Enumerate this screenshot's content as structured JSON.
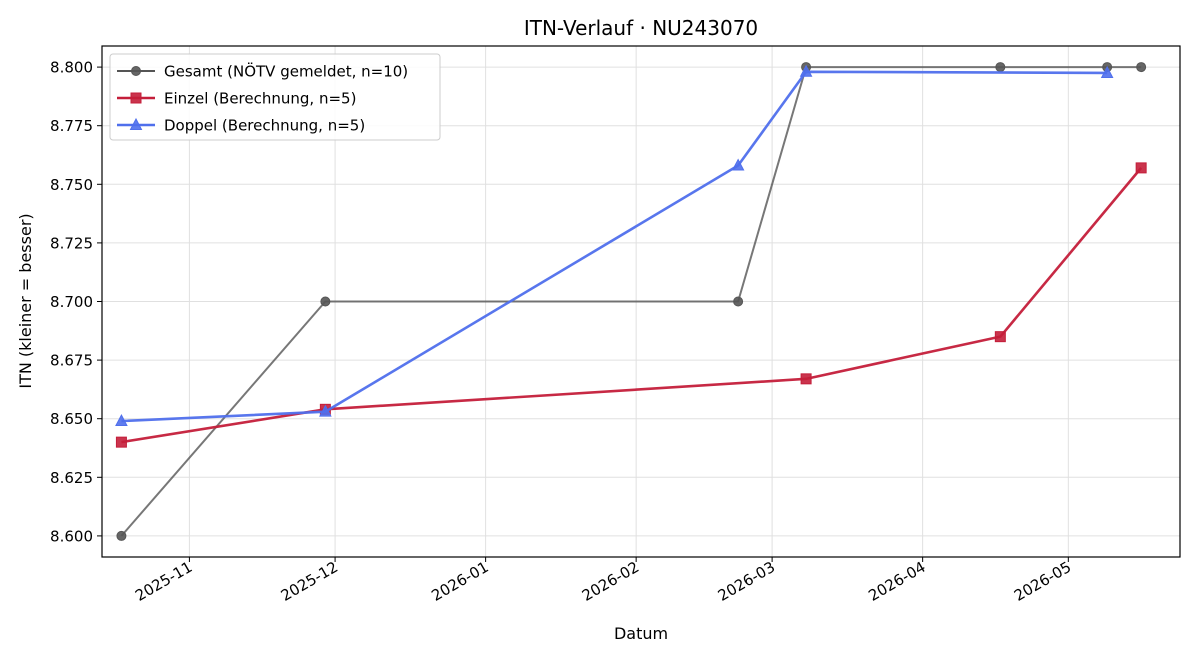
{
  "chart_data": {
    "type": "line",
    "title": "ITN-Verlauf · NU243070",
    "xlabel": "Datum",
    "ylabel": "ITN  (kleiner = besser)",
    "x_axis_type": "date",
    "xlim": [
      "2025-10-14",
      "2026-05-24"
    ],
    "ylim": [
      8.591,
      8.809
    ],
    "x_ticks": [
      {
        "date": "2025-11-01",
        "label": "2025-11"
      },
      {
        "date": "2025-12-01",
        "label": "2025-12"
      },
      {
        "date": "2026-01-01",
        "label": "2026-01"
      },
      {
        "date": "2026-02-01",
        "label": "2026-02"
      },
      {
        "date": "2026-03-01",
        "label": "2026-03"
      },
      {
        "date": "2026-04-01",
        "label": "2026-04"
      },
      {
        "date": "2026-05-01",
        "label": "2026-05"
      }
    ],
    "y_ticks": [
      {
        "value": 8.6,
        "label": "8.600"
      },
      {
        "value": 8.625,
        "label": "8.625"
      },
      {
        "value": 8.65,
        "label": "8.650"
      },
      {
        "value": 8.675,
        "label": "8.675"
      },
      {
        "value": 8.7,
        "label": "8.700"
      },
      {
        "value": 8.725,
        "label": "8.725"
      },
      {
        "value": 8.75,
        "label": "8.750"
      },
      {
        "value": 8.775,
        "label": "8.775"
      },
      {
        "value": 8.8,
        "label": "8.800"
      }
    ],
    "grid": true,
    "legend_position": "top-left",
    "series": [
      {
        "name": "Gesamt (NÖTV gemeldet, n=10)",
        "color": "#555555",
        "marker": "circle",
        "points": [
          {
            "x": "2025-10-18",
            "y": 8.6
          },
          {
            "x": "2025-11-29",
            "y": 8.7
          },
          {
            "x": "2026-02-22",
            "y": 8.7
          },
          {
            "x": "2026-03-08",
            "y": 8.8
          },
          {
            "x": "2026-04-17",
            "y": 8.8
          },
          {
            "x": "2026-05-09",
            "y": 8.8
          },
          {
            "x": "2026-05-16",
            "y": 8.8
          }
        ]
      },
      {
        "name": "Einzel (Berechnung, n=5)",
        "color": "#c41e3a",
        "marker": "square",
        "points": [
          {
            "x": "2025-10-18",
            "y": 8.64
          },
          {
            "x": "2025-11-29",
            "y": 8.654
          },
          {
            "x": "2026-03-08",
            "y": 8.667
          },
          {
            "x": "2026-04-17",
            "y": 8.685
          },
          {
            "x": "2026-05-16",
            "y": 8.757
          }
        ]
      },
      {
        "name": "Doppel (Berechnung, n=5)",
        "color": "#4f6fec",
        "marker": "triangle",
        "points": [
          {
            "x": "2025-10-18",
            "y": 8.649
          },
          {
            "x": "2025-11-29",
            "y": 8.653
          },
          {
            "x": "2026-02-22",
            "y": 8.758
          },
          {
            "x": "2026-03-08",
            "y": 8.798
          },
          {
            "x": "2026-05-09",
            "y": 8.7975
          }
        ]
      }
    ]
  }
}
